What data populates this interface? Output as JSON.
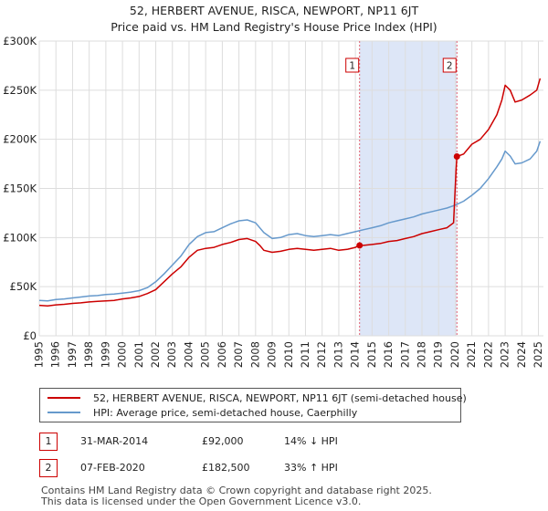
{
  "title_line1": "52, HERBERT AVENUE, RISCA, NEWPORT, NP11 6JT",
  "title_line2": "Price paid vs. HM Land Registry's House Price Index (HPI)",
  "colors": {
    "price": "#cc0000",
    "hpi": "#6699cc",
    "shade": "#dde6f7",
    "marker_line": "#e06070",
    "grid": "#dddddd"
  },
  "chart_data": {
    "type": "line",
    "title": "Price paid vs. HM Land Registry's House Price Index (HPI)",
    "xlabel": "",
    "ylabel": "",
    "xlim": [
      1995,
      2025.3
    ],
    "ylim": [
      0,
      300000
    ],
    "y_ticks": [
      0,
      50000,
      100000,
      150000,
      200000,
      250000,
      300000
    ],
    "y_tick_labels": [
      "£0",
      "£50K",
      "£100K",
      "£150K",
      "£200K",
      "£250K",
      "£300K"
    ],
    "x_ticks": [
      1995,
      1996,
      1997,
      1998,
      1999,
      2000,
      2001,
      2002,
      2003,
      2004,
      2005,
      2006,
      2007,
      2008,
      2009,
      2010,
      2011,
      2012,
      2013,
      2014,
      2015,
      2016,
      2017,
      2018,
      2019,
      2020,
      2021,
      2022,
      2023,
      2024,
      2025
    ],
    "x_tick_labels": [
      "1995",
      "1996",
      "1997",
      "1998",
      "1999",
      "2000",
      "2001",
      "2002",
      "2003",
      "2004",
      "2005",
      "2006",
      "2007",
      "2008",
      "2009",
      "2010",
      "2011",
      "2012",
      "2013",
      "2014",
      "2015",
      "2016",
      "2017",
      "2018",
      "2019",
      "2020",
      "2021",
      "2022",
      "2023",
      "2024",
      "2025"
    ],
    "shaded_region": [
      2014.25,
      2020.1
    ],
    "series": [
      {
        "name": "52, HERBERT AVENUE, RISCA, NEWPORT, NP11 6JT (semi-detached house)",
        "x": [
          1995,
          1995.5,
          1996,
          1996.5,
          1997,
          1997.5,
          1998,
          1998.5,
          1999,
          1999.5,
          2000,
          2000.5,
          2001,
          2001.5,
          2002,
          2002.5,
          2003,
          2003.5,
          2004,
          2004.5,
          2005,
          2005.5,
          2006,
          2006.5,
          2007,
          2007.5,
          2008,
          2008.25,
          2008.5,
          2009,
          2009.5,
          2010,
          2010.5,
          2011,
          2011.5,
          2012,
          2012.5,
          2013,
          2013.5,
          2014,
          2014.25,
          2014.5,
          2015,
          2015.5,
          2016,
          2016.5,
          2017,
          2017.5,
          2018,
          2018.5,
          2019,
          2019.5,
          2019.9,
          2020.05,
          2020.1,
          2020.5,
          2021,
          2021.5,
          2022,
          2022.5,
          2022.8,
          2023,
          2023.3,
          2023.6,
          2024,
          2024.5,
          2024.9,
          2025.1
        ],
        "values": [
          31000,
          30500,
          31500,
          32000,
          33000,
          33500,
          34500,
          35000,
          35500,
          36000,
          37500,
          38500,
          40000,
          43000,
          47000,
          55000,
          63000,
          70000,
          80000,
          87000,
          89000,
          90000,
          93000,
          95000,
          98000,
          99000,
          96000,
          92000,
          87000,
          85000,
          86000,
          88000,
          89000,
          88000,
          87000,
          88000,
          89000,
          87000,
          88000,
          90000,
          92000,
          92000,
          93000,
          94000,
          96000,
          97000,
          99000,
          101000,
          104000,
          106000,
          108000,
          110000,
          115000,
          170000,
          182500,
          185000,
          195000,
          200000,
          210000,
          225000,
          240000,
          255000,
          250000,
          238000,
          240000,
          245000,
          250000,
          262000
        ]
      },
      {
        "name": "HPI: Average price, semi-detached house, Caerphilly",
        "x": [
          1995,
          1995.5,
          1996,
          1996.5,
          1997,
          1997.5,
          1998,
          1998.5,
          1999,
          1999.5,
          2000,
          2000.5,
          2001,
          2001.5,
          2002,
          2002.5,
          2003,
          2003.5,
          2004,
          2004.5,
          2005,
          2005.5,
          2006,
          2006.5,
          2007,
          2007.5,
          2008,
          2008.5,
          2009,
          2009.5,
          2010,
          2010.5,
          2011,
          2011.5,
          2012,
          2012.5,
          2013,
          2013.5,
          2014,
          2014.5,
          2015,
          2015.5,
          2016,
          2016.5,
          2017,
          2017.5,
          2018,
          2018.5,
          2019,
          2019.5,
          2020,
          2020.5,
          2021,
          2021.5,
          2022,
          2022.5,
          2022.8,
          2023,
          2023.3,
          2023.6,
          2024,
          2024.5,
          2024.9,
          2025.1
        ],
        "values": [
          36000,
          35500,
          37000,
          37500,
          38500,
          39500,
          40500,
          41000,
          42000,
          42500,
          43500,
          44500,
          46000,
          49000,
          55000,
          63000,
          72000,
          81000,
          93000,
          101000,
          105000,
          106000,
          110000,
          114000,
          117000,
          118000,
          115000,
          105000,
          99000,
          100000,
          103000,
          104000,
          102000,
          101000,
          102000,
          103000,
          102000,
          104000,
          106000,
          108000,
          110000,
          112000,
          115000,
          117000,
          119000,
          121000,
          124000,
          126000,
          128000,
          130000,
          133000,
          137000,
          143000,
          150000,
          160000,
          172000,
          180000,
          188000,
          183000,
          175000,
          176000,
          180000,
          188000,
          198000
        ]
      }
    ],
    "annotations": [
      {
        "label": "1",
        "x": 2014.25,
        "y": 92000
      },
      {
        "label": "2",
        "x": 2020.1,
        "y": 182500
      }
    ]
  },
  "legend": {
    "price_label": "52, HERBERT AVENUE, RISCA, NEWPORT, NP11 6JT (semi-detached house)",
    "hpi_label": "HPI: Average price, semi-detached house, Caerphilly"
  },
  "transactions": [
    {
      "num": "1",
      "date": "31-MAR-2014",
      "price": "£92,000",
      "hpi_diff": "14% ↓ HPI"
    },
    {
      "num": "2",
      "date": "07-FEB-2020",
      "price": "£182,500",
      "hpi_diff": "33% ↑ HPI"
    }
  ],
  "footer_line1": "Contains HM Land Registry data © Crown copyright and database right 2025.",
  "footer_line2": "This data is licensed under the Open Government Licence v3.0."
}
